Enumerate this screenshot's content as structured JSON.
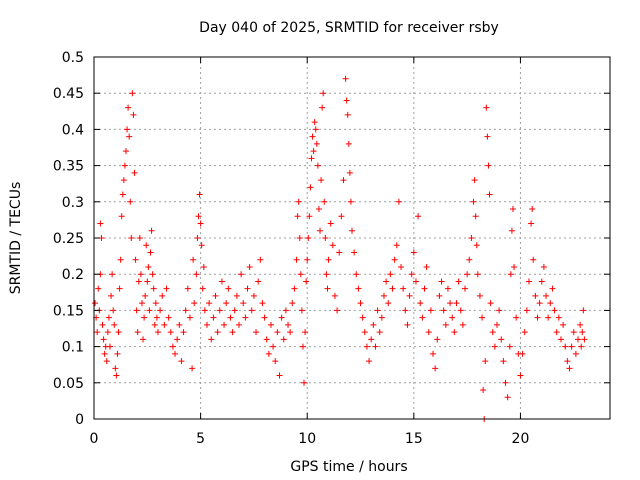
{
  "chart_data": {
    "type": "scatter",
    "title": "Day 040 of 2025, SRMTID for receiver rsby",
    "xlabel": "GPS time / hours",
    "ylabel": "SRMTID / TECUs",
    "xlim": [
      0,
      24.2
    ],
    "ylim": [
      0,
      0.5
    ],
    "xticks": [
      0,
      5,
      10,
      15,
      20
    ],
    "xtick_labels": [
      "0",
      "5",
      "10",
      "15",
      "20"
    ],
    "yticks": [
      0,
      0.05,
      0.1,
      0.15,
      0.2,
      0.25,
      0.3,
      0.35,
      0.4,
      0.45,
      0.5
    ],
    "ytick_labels": [
      "0",
      "0.05",
      "0.1",
      "0.15",
      "0.2",
      "0.25",
      "0.3",
      "0.35",
      "0.4",
      "0.45",
      "0.5"
    ],
    "grid": true,
    "marker": "plus",
    "color": "#ff0000",
    "series": [
      {
        "name": "SRMTID",
        "points": [
          [
            0.05,
            0.16
          ],
          [
            0.1,
            0.14
          ],
          [
            0.15,
            0.12
          ],
          [
            0.2,
            0.18
          ],
          [
            0.25,
            0.15
          ],
          [
            0.3,
            0.2
          ],
          [
            0.3,
            0.27
          ],
          [
            0.35,
            0.25
          ],
          [
            0.4,
            0.13
          ],
          [
            0.45,
            0.11
          ],
          [
            0.5,
            0.09
          ],
          [
            0.55,
            0.1
          ],
          [
            0.6,
            0.08
          ],
          [
            0.65,
            0.12
          ],
          [
            0.7,
            0.14
          ],
          [
            0.75,
            0.1
          ],
          [
            0.8,
            0.17
          ],
          [
            0.85,
            0.2
          ],
          [
            0.9,
            0.15
          ],
          [
            0.95,
            0.13
          ],
          [
            1.0,
            0.07
          ],
          [
            1.05,
            0.06
          ],
          [
            1.1,
            0.09
          ],
          [
            1.15,
            0.12
          ],
          [
            1.2,
            0.18
          ],
          [
            1.25,
            0.22
          ],
          [
            1.3,
            0.28
          ],
          [
            1.35,
            0.31
          ],
          [
            1.4,
            0.33
          ],
          [
            1.45,
            0.35
          ],
          [
            1.5,
            0.37
          ],
          [
            1.55,
            0.4
          ],
          [
            1.6,
            0.43
          ],
          [
            1.65,
            0.39
          ],
          [
            1.7,
            0.3
          ],
          [
            1.75,
            0.25
          ],
          [
            1.8,
            0.45
          ],
          [
            1.85,
            0.42
          ],
          [
            1.9,
            0.34
          ],
          [
            1.95,
            0.22
          ],
          [
            2.0,
            0.15
          ],
          [
            2.05,
            0.12
          ],
          [
            2.1,
            0.19
          ],
          [
            2.15,
            0.25
          ],
          [
            2.2,
            0.2
          ],
          [
            2.25,
            0.16
          ],
          [
            2.3,
            0.11
          ],
          [
            2.35,
            0.14
          ],
          [
            2.4,
            0.17
          ],
          [
            2.45,
            0.24
          ],
          [
            2.5,
            0.19
          ],
          [
            2.55,
            0.21
          ],
          [
            2.6,
            0.15
          ],
          [
            2.65,
            0.23
          ],
          [
            2.7,
            0.26
          ],
          [
            2.75,
            0.2
          ],
          [
            2.8,
            0.18
          ],
          [
            2.85,
            0.13
          ],
          [
            2.9,
            0.16
          ],
          [
            2.95,
            0.14
          ],
          [
            3.0,
            0.12
          ],
          [
            3.1,
            0.15
          ],
          [
            3.2,
            0.17
          ],
          [
            3.3,
            0.13
          ],
          [
            3.4,
            0.18
          ],
          [
            3.5,
            0.14
          ],
          [
            3.6,
            0.12
          ],
          [
            3.7,
            0.1
          ],
          [
            3.8,
            0.09
          ],
          [
            3.9,
            0.11
          ],
          [
            4.0,
            0.13
          ],
          [
            4.1,
            0.08
          ],
          [
            4.2,
            0.12
          ],
          [
            4.3,
            0.15
          ],
          [
            4.4,
            0.18
          ],
          [
            4.5,
            0.14
          ],
          [
            4.6,
            0.07
          ],
          [
            4.65,
            0.22
          ],
          [
            4.7,
            0.16
          ],
          [
            4.8,
            0.2
          ],
          [
            4.85,
            0.25
          ],
          [
            4.9,
            0.28
          ],
          [
            4.95,
            0.31
          ],
          [
            5.0,
            0.27
          ],
          [
            5.05,
            0.24
          ],
          [
            5.1,
            0.18
          ],
          [
            5.15,
            0.21
          ],
          [
            5.2,
            0.15
          ],
          [
            5.3,
            0.13
          ],
          [
            5.4,
            0.16
          ],
          [
            5.5,
            0.11
          ],
          [
            5.6,
            0.14
          ],
          [
            5.7,
            0.17
          ],
          [
            5.8,
            0.12
          ],
          [
            5.9,
            0.15
          ],
          [
            6.0,
            0.19
          ],
          [
            6.1,
            0.13
          ],
          [
            6.2,
            0.16
          ],
          [
            6.3,
            0.18
          ],
          [
            6.4,
            0.14
          ],
          [
            6.5,
            0.12
          ],
          [
            6.6,
            0.15
          ],
          [
            6.7,
            0.17
          ],
          [
            6.8,
            0.13
          ],
          [
            6.9,
            0.2
          ],
          [
            7.0,
            0.16
          ],
          [
            7.1,
            0.14
          ],
          [
            7.2,
            0.18
          ],
          [
            7.3,
            0.21
          ],
          [
            7.4,
            0.15
          ],
          [
            7.5,
            0.17
          ],
          [
            7.6,
            0.12
          ],
          [
            7.7,
            0.19
          ],
          [
            7.8,
            0.22
          ],
          [
            7.9,
            0.16
          ],
          [
            8.0,
            0.14
          ],
          [
            8.1,
            0.11
          ],
          [
            8.2,
            0.09
          ],
          [
            8.3,
            0.13
          ],
          [
            8.4,
            0.1
          ],
          [
            8.5,
            0.08
          ],
          [
            8.6,
            0.12
          ],
          [
            8.7,
            0.06
          ],
          [
            8.8,
            0.14
          ],
          [
            8.9,
            0.11
          ],
          [
            9.0,
            0.15
          ],
          [
            9.1,
            0.13
          ],
          [
            9.2,
            0.12
          ],
          [
            9.3,
            0.16
          ],
          [
            9.4,
            0.18
          ],
          [
            9.5,
            0.22
          ],
          [
            9.55,
            0.28
          ],
          [
            9.6,
            0.3
          ],
          [
            9.65,
            0.25
          ],
          [
            9.7,
            0.2
          ],
          [
            9.75,
            0.15
          ],
          [
            9.8,
            0.1
          ],
          [
            9.85,
            0.05
          ],
          [
            9.9,
            0.12
          ],
          [
            9.95,
            0.19
          ],
          [
            10.0,
            0.22
          ],
          [
            10.05,
            0.25
          ],
          [
            10.1,
            0.28
          ],
          [
            10.15,
            0.32
          ],
          [
            10.2,
            0.36
          ],
          [
            10.25,
            0.39
          ],
          [
            10.3,
            0.37
          ],
          [
            10.35,
            0.41
          ],
          [
            10.4,
            0.4
          ],
          [
            10.45,
            0.38
          ],
          [
            10.5,
            0.35
          ],
          [
            10.55,
            0.29
          ],
          [
            10.6,
            0.26
          ],
          [
            10.65,
            0.33
          ],
          [
            10.7,
            0.43
          ],
          [
            10.75,
            0.45
          ],
          [
            10.8,
            0.3
          ],
          [
            10.85,
            0.25
          ],
          [
            10.9,
            0.2
          ],
          [
            10.95,
            0.18
          ],
          [
            11.0,
            0.22
          ],
          [
            11.1,
            0.27
          ],
          [
            11.2,
            0.24
          ],
          [
            11.3,
            0.17
          ],
          [
            11.4,
            0.15
          ],
          [
            11.5,
            0.23
          ],
          [
            11.6,
            0.28
          ],
          [
            11.7,
            0.33
          ],
          [
            11.8,
            0.47
          ],
          [
            11.85,
            0.44
          ],
          [
            11.9,
            0.42
          ],
          [
            11.95,
            0.38
          ],
          [
            12.0,
            0.34
          ],
          [
            12.05,
            0.3
          ],
          [
            12.1,
            0.26
          ],
          [
            12.2,
            0.23
          ],
          [
            12.3,
            0.2
          ],
          [
            12.4,
            0.18
          ],
          [
            12.5,
            0.16
          ],
          [
            12.6,
            0.14
          ],
          [
            12.7,
            0.12
          ],
          [
            12.8,
            0.1
          ],
          [
            12.9,
            0.08
          ],
          [
            13.0,
            0.11
          ],
          [
            13.1,
            0.13
          ],
          [
            13.2,
            0.1
          ],
          [
            13.3,
            0.15
          ],
          [
            13.4,
            0.12
          ],
          [
            13.5,
            0.14
          ],
          [
            13.6,
            0.17
          ],
          [
            13.7,
            0.19
          ],
          [
            13.8,
            0.16
          ],
          [
            13.9,
            0.2
          ],
          [
            14.0,
            0.18
          ],
          [
            14.1,
            0.22
          ],
          [
            14.2,
            0.24
          ],
          [
            14.3,
            0.3
          ],
          [
            14.4,
            0.21
          ],
          [
            14.5,
            0.18
          ],
          [
            14.6,
            0.15
          ],
          [
            14.7,
            0.13
          ],
          [
            14.8,
            0.17
          ],
          [
            14.9,
            0.2
          ],
          [
            15.0,
            0.23
          ],
          [
            15.1,
            0.19
          ],
          [
            15.2,
            0.28
          ],
          [
            15.3,
            0.16
          ],
          [
            15.4,
            0.14
          ],
          [
            15.5,
            0.18
          ],
          [
            15.6,
            0.21
          ],
          [
            15.7,
            0.12
          ],
          [
            15.8,
            0.15
          ],
          [
            15.9,
            0.09
          ],
          [
            16.0,
            0.07
          ],
          [
            16.1,
            0.11
          ],
          [
            16.2,
            0.17
          ],
          [
            16.3,
            0.19
          ],
          [
            16.4,
            0.15
          ],
          [
            16.5,
            0.13
          ],
          [
            16.6,
            0.18
          ],
          [
            16.7,
            0.16
          ],
          [
            16.8,
            0.14
          ],
          [
            16.9,
            0.12
          ],
          [
            17.0,
            0.16
          ],
          [
            17.1,
            0.19
          ],
          [
            17.2,
            0.15
          ],
          [
            17.3,
            0.13
          ],
          [
            17.4,
            0.18
          ],
          [
            17.5,
            0.2
          ],
          [
            17.6,
            0.22
          ],
          [
            17.7,
            0.25
          ],
          [
            17.8,
            0.3
          ],
          [
            17.85,
            0.33
          ],
          [
            17.9,
            0.28
          ],
          [
            17.95,
            0.24
          ],
          [
            18.0,
            0.2
          ],
          [
            18.1,
            0.17
          ],
          [
            18.2,
            0.14
          ],
          [
            18.25,
            0.04
          ],
          [
            18.3,
            0.0
          ],
          [
            18.35,
            0.08
          ],
          [
            18.4,
            0.43
          ],
          [
            18.45,
            0.39
          ],
          [
            18.5,
            0.35
          ],
          [
            18.55,
            0.31
          ],
          [
            18.6,
            0.16
          ],
          [
            18.7,
            0.12
          ],
          [
            18.8,
            0.1
          ],
          [
            18.9,
            0.13
          ],
          [
            19.0,
            0.15
          ],
          [
            19.1,
            0.11
          ],
          [
            19.2,
            0.08
          ],
          [
            19.3,
            0.05
          ],
          [
            19.4,
            0.03
          ],
          [
            19.5,
            0.1
          ],
          [
            19.55,
            0.2
          ],
          [
            19.6,
            0.26
          ],
          [
            19.65,
            0.29
          ],
          [
            19.7,
            0.21
          ],
          [
            19.8,
            0.14
          ],
          [
            19.9,
            0.09
          ],
          [
            20.0,
            0.06
          ],
          [
            20.1,
            0.09
          ],
          [
            20.2,
            0.12
          ],
          [
            20.3,
            0.15
          ],
          [
            20.4,
            0.19
          ],
          [
            20.5,
            0.27
          ],
          [
            20.55,
            0.29
          ],
          [
            20.6,
            0.22
          ],
          [
            20.7,
            0.17
          ],
          [
            20.8,
            0.14
          ],
          [
            20.9,
            0.16
          ],
          [
            21.0,
            0.19
          ],
          [
            21.1,
            0.21
          ],
          [
            21.2,
            0.17
          ],
          [
            21.3,
            0.14
          ],
          [
            21.4,
            0.16
          ],
          [
            21.5,
            0.18
          ],
          [
            21.6,
            0.15
          ],
          [
            21.7,
            0.12
          ],
          [
            21.8,
            0.14
          ],
          [
            21.9,
            0.11
          ],
          [
            22.0,
            0.13
          ],
          [
            22.1,
            0.1
          ],
          [
            22.2,
            0.08
          ],
          [
            22.3,
            0.07
          ],
          [
            22.4,
            0.1
          ],
          [
            22.5,
            0.12
          ],
          [
            22.6,
            0.09
          ],
          [
            22.7,
            0.11
          ],
          [
            22.8,
            0.13
          ],
          [
            22.85,
            0.1
          ],
          [
            22.9,
            0.12
          ],
          [
            22.95,
            0.15
          ],
          [
            23.0,
            0.11
          ]
        ]
      }
    ]
  }
}
